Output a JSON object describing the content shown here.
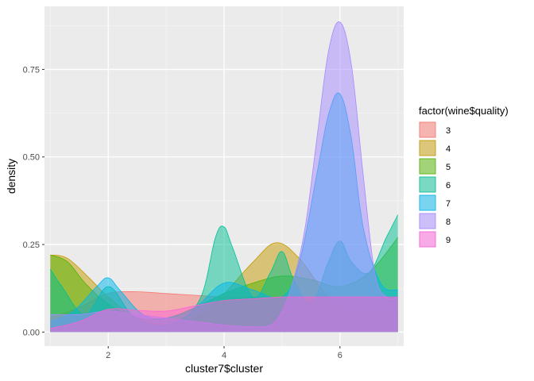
{
  "chart_data": {
    "type": "area",
    "subtype": "density",
    "xlabel": "cluster7$cluster",
    "ylabel": "density",
    "xlim": [
      0.9,
      7.1
    ],
    "ylim": [
      -0.04,
      0.93
    ],
    "x_ticks": [
      2,
      4,
      6
    ],
    "x_tick_labels": [
      "2",
      "4",
      "6"
    ],
    "y_ticks": [
      0,
      0.25,
      0.5,
      0.75
    ],
    "y_tick_labels": [
      "0.00",
      "0.25",
      "0.50",
      "0.75"
    ],
    "grid": true,
    "background": "#EBEBEB",
    "fill_alpha": 0.5,
    "legend": {
      "title": "factor(wine$quality)",
      "position": "right"
    },
    "series": [
      {
        "name": "3",
        "color": "#F8766D",
        "x": [
          1,
          1.5,
          2,
          2.5,
          3,
          3.5,
          4,
          4.5,
          5,
          5.5,
          6,
          6.5,
          7
        ],
        "y": [
          0.04,
          0.07,
          0.11,
          0.115,
          0.11,
          0.105,
          0.1,
          0.1,
          0.1,
          0.1,
          0.1,
          0.1,
          0.1
        ]
      },
      {
        "name": "4",
        "color": "#C49A00",
        "x": [
          1,
          1.3,
          1.7,
          2,
          2.5,
          3,
          3.5,
          4,
          4.5,
          4.9,
          5.3,
          5.7,
          6,
          6.5,
          7
        ],
        "y": [
          0.22,
          0.21,
          0.15,
          0.1,
          0.04,
          0.02,
          0.04,
          0.11,
          0.2,
          0.255,
          0.21,
          0.12,
          0.07,
          0.05,
          0.05
        ]
      },
      {
        "name": "5",
        "color": "#53B400",
        "x": [
          1,
          1.3,
          1.6,
          2,
          2.5,
          3,
          3.5,
          4,
          4.5,
          5,
          5.5,
          6,
          6.5,
          7
        ],
        "y": [
          0.22,
          0.2,
          0.14,
          0.08,
          0.04,
          0.04,
          0.07,
          0.11,
          0.14,
          0.16,
          0.15,
          0.13,
          0.17,
          0.27
        ]
      },
      {
        "name": "6",
        "color": "#00C094",
        "x": [
          1,
          1.2,
          1.6,
          2,
          2.4,
          2.8,
          3.2,
          3.6,
          3.85,
          4,
          4.15,
          4.5,
          4.8,
          5,
          5.2,
          5.5,
          5.8,
          6,
          6.2,
          6.5,
          6.8,
          7
        ],
        "y": [
          0.18,
          0.13,
          0.05,
          0.13,
          0.05,
          0.02,
          0.03,
          0.1,
          0.27,
          0.3,
          0.24,
          0.1,
          0.17,
          0.23,
          0.15,
          0.08,
          0.2,
          0.26,
          0.2,
          0.17,
          0.27,
          0.335
        ]
      },
      {
        "name": "7",
        "color": "#00B6EB",
        "x": [
          1,
          1.4,
          1.8,
          2,
          2.2,
          2.6,
          3,
          3.5,
          4,
          4.5,
          5,
          5.3,
          5.6,
          5.8,
          6,
          6.2,
          6.4,
          6.7,
          7
        ],
        "y": [
          0.03,
          0.06,
          0.13,
          0.155,
          0.12,
          0.05,
          0.04,
          0.07,
          0.14,
          0.12,
          0.1,
          0.2,
          0.45,
          0.62,
          0.68,
          0.55,
          0.3,
          0.14,
          0.12
        ]
      },
      {
        "name": "8",
        "color": "#A58AFF",
        "x": [
          1,
          1.5,
          2,
          2.5,
          3,
          3.5,
          4,
          4.5,
          4.8,
          5,
          5.2,
          5.4,
          5.6,
          5.8,
          6,
          6.2,
          6.4,
          6.6,
          6.8,
          7
        ],
        "y": [
          0.05,
          0.05,
          0.06,
          0.05,
          0.04,
          0.03,
          0.02,
          0.015,
          0.02,
          0.06,
          0.15,
          0.3,
          0.55,
          0.8,
          0.885,
          0.76,
          0.45,
          0.17,
          0.1,
          0.1
        ]
      },
      {
        "name": "9",
        "color": "#FB61D7",
        "x": [
          1,
          1.5,
          2,
          2.5,
          3,
          3.5,
          4,
          4.5,
          5,
          5.5,
          6,
          6.5,
          7
        ],
        "y": [
          0.01,
          0.03,
          0.065,
          0.062,
          0.06,
          0.075,
          0.09,
          0.095,
          0.1,
          0.1,
          0.1,
          0.1,
          0.1
        ]
      }
    ]
  }
}
